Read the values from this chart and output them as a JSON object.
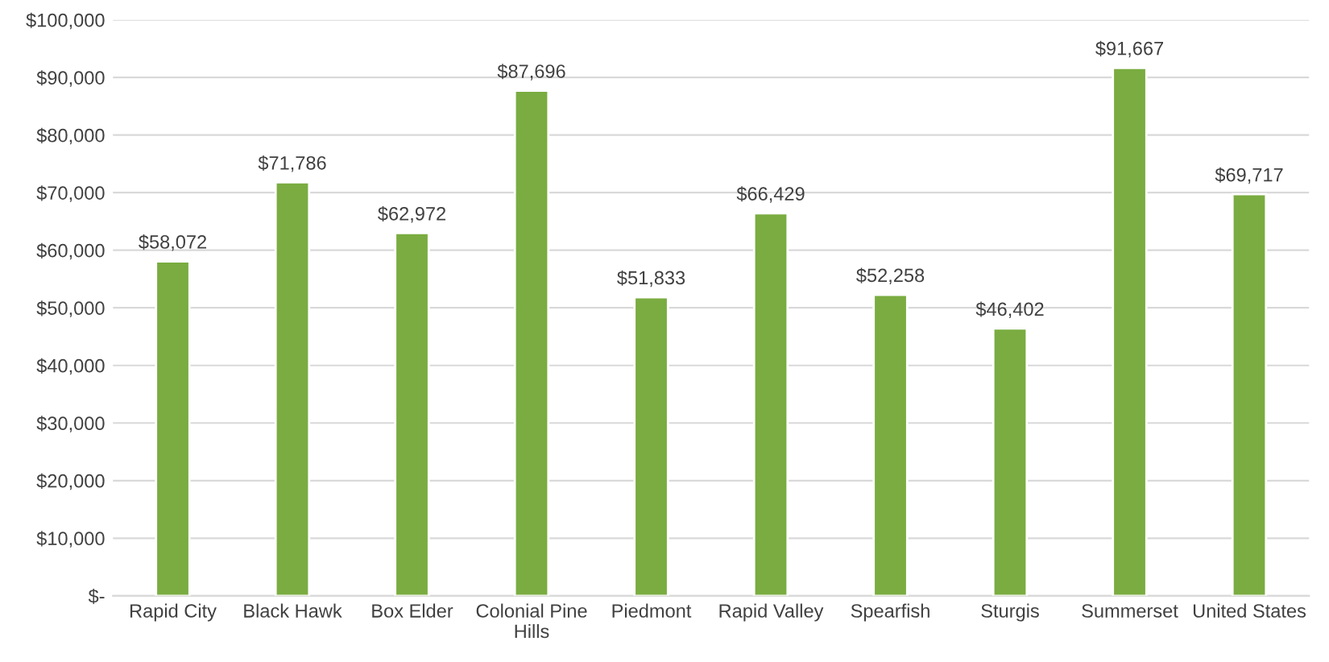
{
  "chart_data": {
    "type": "bar",
    "categories": [
      "Rapid City",
      "Black Hawk",
      "Box Elder",
      "Colonial Pine Hills",
      "Piedmont",
      "Rapid Valley",
      "Spearfish",
      "Sturgis",
      "Summerset",
      "United States"
    ],
    "values": [
      58072,
      71786,
      62972,
      87696,
      51833,
      66429,
      52258,
      46402,
      91667,
      69717
    ],
    "value_labels": [
      "$58,072",
      "$71,786",
      "$62,972",
      "$87,696",
      "$51,833",
      "$66,429",
      "$52,258",
      "$46,402",
      "$91,667",
      "$69,717"
    ],
    "color": "#7aac41",
    "ylim": [
      0,
      100000
    ],
    "yticks": [
      {
        "value": 0,
        "label": "$-"
      },
      {
        "value": 10000,
        "label": "$10,000"
      },
      {
        "value": 20000,
        "label": "$20,000"
      },
      {
        "value": 30000,
        "label": "$30,000"
      },
      {
        "value": 40000,
        "label": "$40,000"
      },
      {
        "value": 50000,
        "label": "$50,000"
      },
      {
        "value": 60000,
        "label": "$60,000"
      },
      {
        "value": 70000,
        "label": "$70,000"
      },
      {
        "value": 80000,
        "label": "$80,000"
      },
      {
        "value": 90000,
        "label": "$90,000"
      },
      {
        "value": 100000,
        "label": "$100,000"
      }
    ],
    "grid": "y"
  }
}
